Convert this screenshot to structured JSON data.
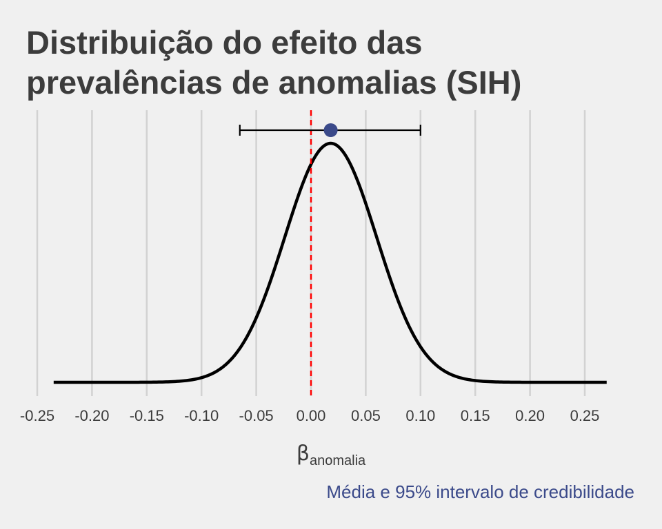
{
  "chart_data": {
    "type": "line",
    "title_lines": [
      "Distribuição do efeito das",
      "prevalências de anomalias (SIH)"
    ],
    "xlabel_symbol": "β",
    "xlabel_subscript": "anomalia",
    "caption": "Média e 95% intervalo de credibilidade",
    "xlim": [
      -0.265,
      0.275
    ],
    "x_ticks": [
      -0.25,
      -0.2,
      -0.15,
      -0.1,
      -0.05,
      0.0,
      0.05,
      0.1,
      0.15,
      0.2,
      0.25
    ],
    "x_tick_labels": [
      "-0.25",
      "-0.20",
      "-0.15",
      "-0.10",
      "-0.05",
      "0.00",
      "0.05",
      "0.10",
      "0.15",
      "0.20",
      "0.25"
    ],
    "grid_vertical": true,
    "y_axis_visible": false,
    "density": {
      "distribution": "normal",
      "mean": 0.018,
      "sd": 0.042,
      "x_range": [
        -0.235,
        0.27
      ]
    },
    "point_estimate": {
      "mean": 0.018,
      "ci_lower": -0.065,
      "ci_upper": 0.1
    },
    "reference_line": {
      "x": 0.0,
      "style": "dashed",
      "color": "#ff0000"
    },
    "colors": {
      "background": "#f0f0f0",
      "grid": "#d2d2d2",
      "density_line": "#000000",
      "point": "#3b4a8a",
      "caption": "#3b4a8a",
      "text": "#3c3c3c"
    }
  }
}
